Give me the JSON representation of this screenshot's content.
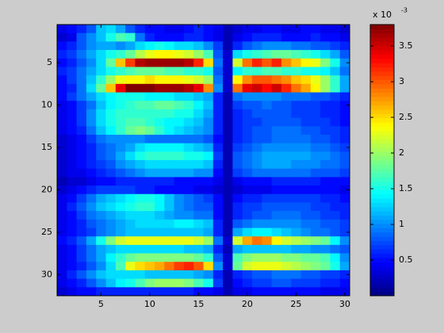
{
  "chart_data": {
    "type": "heatmap",
    "colormap": "jet",
    "xlim": [
      0.5,
      30.5
    ],
    "xticks": [
      5,
      10,
      15,
      20,
      25,
      30
    ],
    "ylim": [
      0.5,
      32.5
    ],
    "yticks": [
      5,
      10,
      15,
      20,
      25,
      30
    ],
    "y_reversed": true,
    "colorbar": {
      "label": "x 10",
      "exponent": "-3",
      "lim": [
        0,
        3.8
      ],
      "ticks": [
        0.5,
        1,
        1.5,
        2,
        2.5,
        3,
        3.5
      ]
    },
    "values": [
      [
        0.4,
        0.5,
        0.6,
        0.8,
        1.2,
        1.3,
        1.1,
        0.8,
        0.6,
        0.5,
        0.5,
        0.4,
        0.4,
        0.5,
        0.6,
        0.5,
        0.4,
        0.2,
        0.3,
        0.4,
        0.4,
        0.5,
        0.5,
        0.4,
        0.4,
        0.5,
        0.5,
        0.4,
        0.4,
        0.3
      ],
      [
        0.3,
        0.4,
        0.8,
        1.0,
        1.2,
        1.5,
        1.7,
        1.6,
        0.9,
        0.6,
        0.5,
        0.5,
        0.5,
        0.6,
        0.6,
        0.5,
        0.4,
        0.2,
        0.4,
        0.5,
        0.6,
        0.6,
        0.6,
        0.5,
        0.5,
        0.5,
        0.6,
        0.5,
        0.5,
        0.4
      ],
      [
        0.5,
        0.6,
        0.8,
        1.0,
        1.1,
        1.1,
        1.0,
        1.1,
        1.3,
        1.4,
        1.5,
        1.4,
        1.3,
        1.3,
        1.2,
        1.0,
        0.7,
        0.2,
        0.6,
        0.8,
        0.9,
        1.0,
        1.0,
        1.0,
        0.9,
        0.9,
        0.8,
        0.8,
        0.7,
        0.6
      ],
      [
        0.6,
        0.7,
        0.9,
        1.1,
        1.3,
        1.5,
        1.6,
        1.8,
        2.1,
        2.3,
        2.4,
        2.4,
        2.3,
        2.2,
        2.0,
        1.7,
        0.8,
        0.3,
        1.3,
        1.5,
        1.6,
        1.7,
        1.8,
        1.8,
        1.7,
        1.6,
        1.5,
        1.3,
        1.1,
        0.8
      ],
      [
        0.5,
        0.6,
        0.8,
        1.0,
        1.3,
        1.8,
        2.6,
        3.1,
        3.6,
        3.7,
        3.7,
        3.7,
        3.7,
        3.6,
        3.2,
        2.5,
        0.9,
        0.3,
        2.2,
        2.9,
        3.2,
        3.0,
        3.2,
        2.8,
        2.6,
        2.4,
        2.3,
        1.9,
        1.5,
        1.0
      ],
      [
        0.6,
        0.7,
        0.9,
        1.1,
        1.3,
        1.5,
        1.6,
        1.7,
        1.8,
        1.8,
        1.8,
        1.7,
        1.7,
        1.6,
        1.6,
        1.5,
        0.8,
        0.3,
        1.4,
        1.6,
        1.6,
        1.7,
        1.7,
        1.6,
        1.6,
        1.5,
        1.5,
        1.4,
        1.2,
        0.9
      ],
      [
        0.5,
        0.7,
        0.9,
        1.2,
        1.6,
        2.0,
        2.3,
        2.4,
        2.4,
        2.5,
        2.4,
        2.4,
        2.4,
        2.3,
        2.2,
        2.0,
        0.9,
        0.3,
        2.4,
        2.8,
        3.0,
        3.0,
        2.9,
        2.8,
        2.6,
        2.5,
        2.3,
        2.0,
        1.6,
        1.1
      ],
      [
        0.5,
        0.6,
        0.9,
        1.3,
        1.8,
        2.6,
        3.4,
        3.8,
        3.8,
        3.8,
        3.7,
        3.7,
        3.7,
        3.6,
        3.4,
        2.8,
        1.0,
        0.3,
        2.9,
        3.4,
        3.5,
        3.3,
        3.5,
        3.2,
        2.9,
        2.7,
        2.4,
        2.0,
        1.6,
        1.1
      ],
      [
        0.5,
        0.7,
        0.9,
        1.1,
        1.3,
        1.4,
        1.5,
        1.5,
        1.5,
        1.4,
        1.4,
        1.4,
        1.3,
        1.3,
        1.2,
        1.1,
        0.6,
        0.2,
        0.9,
        1.0,
        1.0,
        1.0,
        1.0,
        0.9,
        0.9,
        0.9,
        0.8,
        0.8,
        0.7,
        0.6
      ],
      [
        0.4,
        0.5,
        0.7,
        0.9,
        1.2,
        1.4,
        1.5,
        1.6,
        1.7,
        1.7,
        1.8,
        1.8,
        1.7,
        1.6,
        1.4,
        1.2,
        0.6,
        0.2,
        0.7,
        0.8,
        0.8,
        0.9,
        0.8,
        0.8,
        0.7,
        0.7,
        0.7,
        0.6,
        0.6,
        0.5
      ],
      [
        0.4,
        0.5,
        0.7,
        1.0,
        1.3,
        1.5,
        1.6,
        1.6,
        1.6,
        1.6,
        1.6,
        1.6,
        1.5,
        1.5,
        1.3,
        1.1,
        0.6,
        0.2,
        0.6,
        0.7,
        0.8,
        0.8,
        0.8,
        0.8,
        0.7,
        0.7,
        0.7,
        0.6,
        0.6,
        0.5
      ],
      [
        0.4,
        0.5,
        0.7,
        1.0,
        1.3,
        1.5,
        1.6,
        1.7,
        1.7,
        1.6,
        1.5,
        1.4,
        1.4,
        1.3,
        1.2,
        1.0,
        0.6,
        0.2,
        0.6,
        0.7,
        0.7,
        0.8,
        0.8,
        0.8,
        0.8,
        0.7,
        0.7,
        0.7,
        0.6,
        0.5
      ],
      [
        0.4,
        0.5,
        0.6,
        0.9,
        1.2,
        1.4,
        1.6,
        1.8,
        1.9,
        1.8,
        1.6,
        1.4,
        1.3,
        1.2,
        1.1,
        1.0,
        0.6,
        0.2,
        0.6,
        0.7,
        0.8,
        0.8,
        0.9,
        0.9,
        0.9,
        0.8,
        0.8,
        0.7,
        0.7,
        0.6
      ],
      [
        0.3,
        0.4,
        0.5,
        0.7,
        0.9,
        1.0,
        1.0,
        1.0,
        1.0,
        0.9,
        0.9,
        0.9,
        0.9,
        0.9,
        0.9,
        0.8,
        0.5,
        0.2,
        0.6,
        0.7,
        0.8,
        0.8,
        0.9,
        0.9,
        0.9,
        0.9,
        0.8,
        0.8,
        0.7,
        0.6
      ],
      [
        0.3,
        0.4,
        0.5,
        0.6,
        0.8,
        0.9,
        1.0,
        1.1,
        1.3,
        1.4,
        1.4,
        1.4,
        1.4,
        1.3,
        1.2,
        1.1,
        0.6,
        0.2,
        0.7,
        0.8,
        0.9,
        1.0,
        1.0,
        1.0,
        1.0,
        1.0,
        0.9,
        0.9,
        0.8,
        0.7
      ],
      [
        0.3,
        0.4,
        0.5,
        0.6,
        0.8,
        0.9,
        1.1,
        1.3,
        1.5,
        1.6,
        1.6,
        1.6,
        1.6,
        1.5,
        1.5,
        1.4,
        0.7,
        0.2,
        0.8,
        0.9,
        1.0,
        1.1,
        1.1,
        1.1,
        1.1,
        1.1,
        1.0,
        1.0,
        0.9,
        0.8
      ],
      [
        0.3,
        0.4,
        0.5,
        0.6,
        0.7,
        0.8,
        1.0,
        1.1,
        1.2,
        1.3,
        1.3,
        1.3,
        1.3,
        1.3,
        1.3,
        1.2,
        0.6,
        0.2,
        0.8,
        0.9,
        1.0,
        1.1,
        1.1,
        1.1,
        1.0,
        1.0,
        1.0,
        0.9,
        0.9,
        0.8
      ],
      [
        0.3,
        0.4,
        0.4,
        0.5,
        0.6,
        0.7,
        0.8,
        0.9,
        1.0,
        1.1,
        1.1,
        1.1,
        1.1,
        1.1,
        1.0,
        1.0,
        0.5,
        0.2,
        0.7,
        0.8,
        0.9,
        0.9,
        0.9,
        0.9,
        0.9,
        0.9,
        0.8,
        0.8,
        0.8,
        0.7
      ],
      [
        0.2,
        0.3,
        0.3,
        0.4,
        0.5,
        0.5,
        0.6,
        0.6,
        0.6,
        0.6,
        0.6,
        0.6,
        0.5,
        0.5,
        0.5,
        0.5,
        0.4,
        0.2,
        0.4,
        0.5,
        0.5,
        0.5,
        0.6,
        0.6,
        0.6,
        0.6,
        0.6,
        0.5,
        0.5,
        0.5
      ],
      [
        0.3,
        0.4,
        0.5,
        0.6,
        0.7,
        0.7,
        0.7,
        0.7,
        0.6,
        0.6,
        0.5,
        0.5,
        0.5,
        0.5,
        0.4,
        0.4,
        0.3,
        0.2,
        0.3,
        0.4,
        0.4,
        0.4,
        0.5,
        0.5,
        0.5,
        0.5,
        0.5,
        0.5,
        0.5,
        0.4
      ],
      [
        0.4,
        0.5,
        0.7,
        0.9,
        1.1,
        1.2,
        1.3,
        1.4,
        1.5,
        1.5,
        1.4,
        1.2,
        1.0,
        0.9,
        0.8,
        0.7,
        0.5,
        0.2,
        0.5,
        0.6,
        0.6,
        0.7,
        0.7,
        0.7,
        0.7,
        0.7,
        0.7,
        0.6,
        0.6,
        0.5
      ],
      [
        0.4,
        0.6,
        0.8,
        1.0,
        1.2,
        1.3,
        1.4,
        1.5,
        1.6,
        1.6,
        1.4,
        1.2,
        1.0,
        0.9,
        0.8,
        0.8,
        0.5,
        0.2,
        0.6,
        0.7,
        0.7,
        0.8,
        0.8,
        0.8,
        0.8,
        0.8,
        0.7,
        0.7,
        0.6,
        0.6
      ],
      [
        0.4,
        0.5,
        0.7,
        0.9,
        1.0,
        1.1,
        1.2,
        1.3,
        1.3,
        1.3,
        1.2,
        1.1,
        1.0,
        1.0,
        0.9,
        0.9,
        0.5,
        0.2,
        0.6,
        0.7,
        0.8,
        0.8,
        0.9,
        0.9,
        0.9,
        0.8,
        0.8,
        0.7,
        0.7,
        0.6
      ],
      [
        0.4,
        0.5,
        0.6,
        0.8,
        0.9,
        1.0,
        1.1,
        1.2,
        1.3,
        1.3,
        1.3,
        1.3,
        1.4,
        1.4,
        1.3,
        1.2,
        0.6,
        0.2,
        0.8,
        0.9,
        1.0,
        1.0,
        1.0,
        1.0,
        1.0,
        0.9,
        0.9,
        0.8,
        0.8,
        0.7
      ],
      [
        0.4,
        0.5,
        0.6,
        0.7,
        0.9,
        1.0,
        1.1,
        1.2,
        1.2,
        1.2,
        1.2,
        1.2,
        1.2,
        1.2,
        1.2,
        1.1,
        0.6,
        0.2,
        1.1,
        1.3,
        1.4,
        1.4,
        1.3,
        1.2,
        1.1,
        1.0,
        0.9,
        0.9,
        0.8,
        0.7
      ],
      [
        0.5,
        0.6,
        0.8,
        1.1,
        1.5,
        1.9,
        2.2,
        2.3,
        2.3,
        2.3,
        2.3,
        2.3,
        2.3,
        2.3,
        2.2,
        2.0,
        0.9,
        0.3,
        2.2,
        2.7,
        2.9,
        2.8,
        2.4,
        2.2,
        2.1,
        2.0,
        1.9,
        1.8,
        1.4,
        1.0
      ],
      [
        0.4,
        0.5,
        0.7,
        0.9,
        1.1,
        1.2,
        1.3,
        1.3,
        1.3,
        1.3,
        1.3,
        1.3,
        1.3,
        1.2,
        1.2,
        1.1,
        0.6,
        0.2,
        1.1,
        1.2,
        1.2,
        1.2,
        1.2,
        1.2,
        1.1,
        1.1,
        1.0,
        1.0,
        0.9,
        0.8
      ],
      [
        0.4,
        0.5,
        0.7,
        0.9,
        1.1,
        1.4,
        1.6,
        1.8,
        1.9,
        1.9,
        1.9,
        1.9,
        1.9,
        1.9,
        1.8,
        1.6,
        0.8,
        0.3,
        1.7,
        1.9,
        2.0,
        2.0,
        2.0,
        1.9,
        1.9,
        1.8,
        1.8,
        1.7,
        1.4,
        1.0
      ],
      [
        0.4,
        0.5,
        0.6,
        0.8,
        1.0,
        1.3,
        1.7,
        2.3,
        2.5,
        2.6,
        2.7,
        2.9,
        3.1,
        3.2,
        3.0,
        2.5,
        1.0,
        0.3,
        1.8,
        2.2,
        2.3,
        2.3,
        2.3,
        2.2,
        2.1,
        2.0,
        1.9,
        1.8,
        1.5,
        1.1
      ],
      [
        0.4,
        0.6,
        0.8,
        1.0,
        1.2,
        1.3,
        1.3,
        1.3,
        1.3,
        1.2,
        1.2,
        1.2,
        1.2,
        1.2,
        1.1,
        1.0,
        0.6,
        0.2,
        0.6,
        0.7,
        0.8,
        0.8,
        0.9,
        0.9,
        0.9,
        0.8,
        0.8,
        0.7,
        0.7,
        0.6
      ],
      [
        0.4,
        0.5,
        0.6,
        0.8,
        1.0,
        1.2,
        1.4,
        1.5,
        1.7,
        1.9,
        2.0,
        2.0,
        2.0,
        1.9,
        1.7,
        1.5,
        0.7,
        0.2,
        0.5,
        0.6,
        0.7,
        0.7,
        0.8,
        0.8,
        0.7,
        0.7,
        0.7,
        0.6,
        0.6,
        0.5
      ],
      [
        0.3,
        0.4,
        0.5,
        0.5,
        0.6,
        0.6,
        0.6,
        0.6,
        0.6,
        0.6,
        0.6,
        0.6,
        0.6,
        0.6,
        0.5,
        0.5,
        0.4,
        0.2,
        0.4,
        0.4,
        0.5,
        0.5,
        0.5,
        0.5,
        0.5,
        0.5,
        0.5,
        0.4,
        0.4,
        0.4
      ]
    ]
  }
}
